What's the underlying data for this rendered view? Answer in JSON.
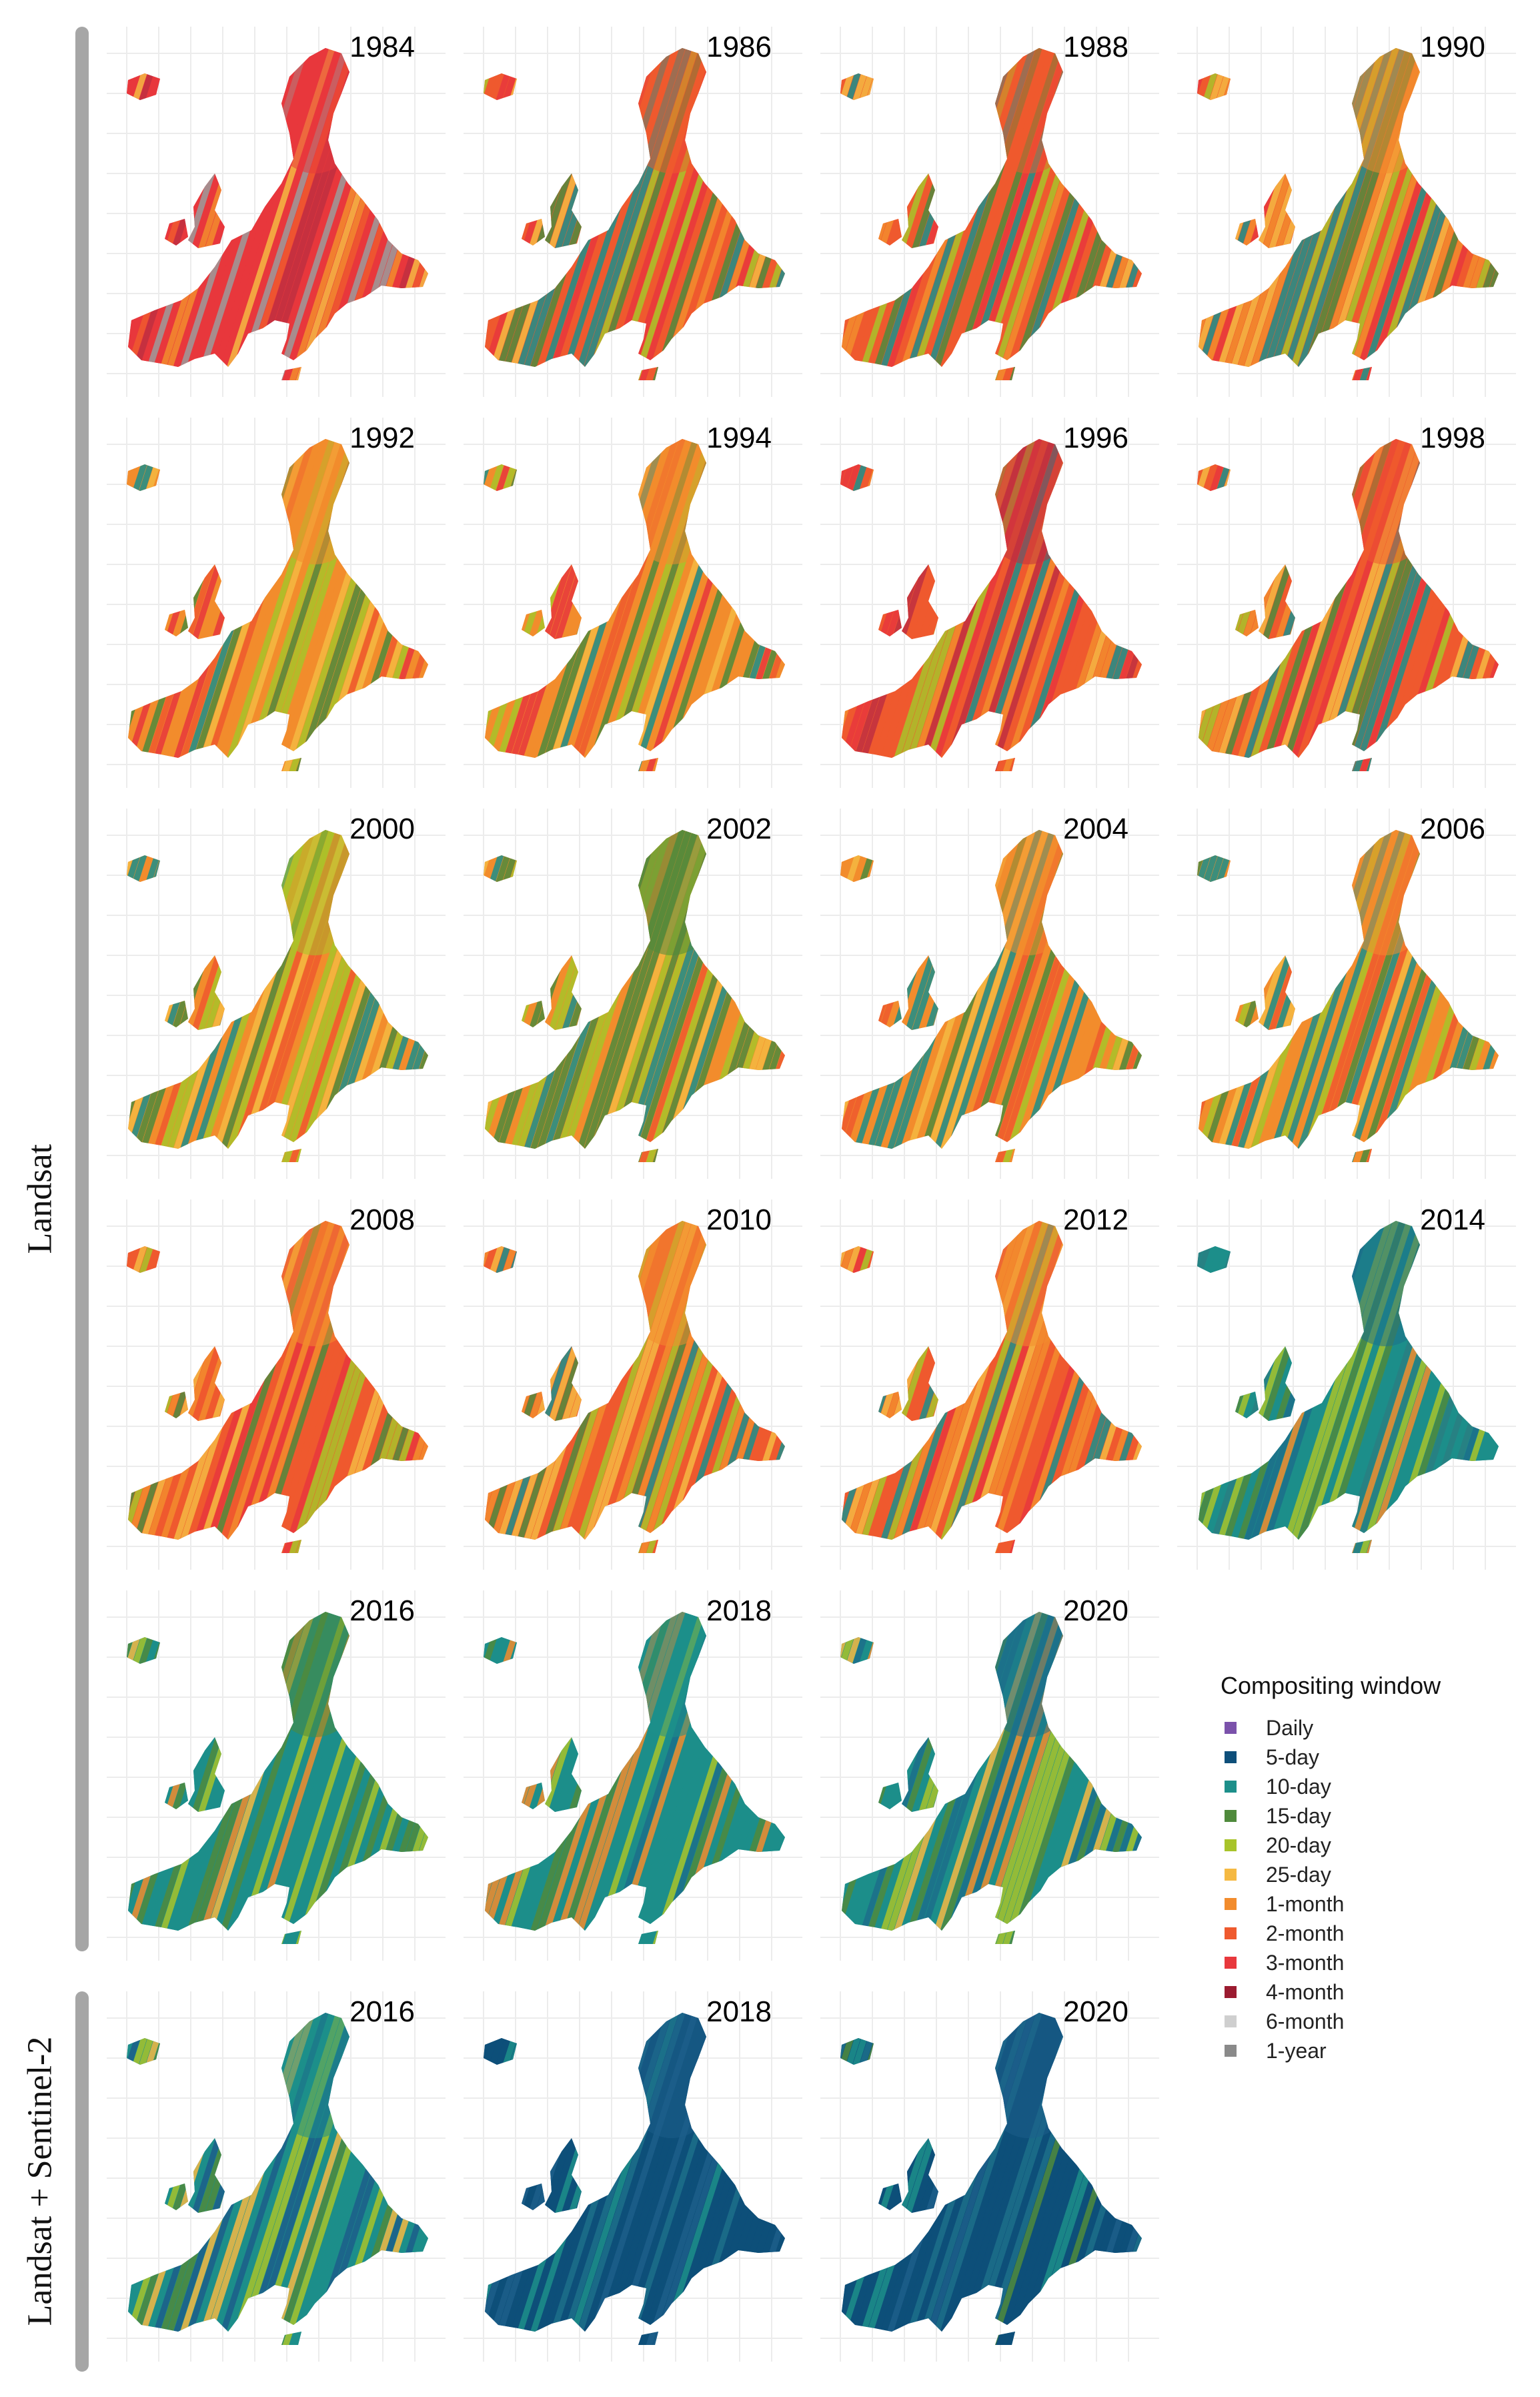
{
  "groups": [
    {
      "label": "Landsat"
    },
    {
      "label": "Landsat + Sentinel-2"
    }
  ],
  "panels": [
    {
      "year": "1984",
      "group": 0,
      "palette": [
        "#e8383d",
        "#ef5a2e",
        "#e8383d",
        "#f28c2d",
        "#c03040",
        "#9c9c9c",
        "#f5b942",
        "#e8383d"
      ]
    },
    {
      "year": "1986",
      "group": 0,
      "palette": [
        "#ef5a2e",
        "#f28c2d",
        "#e8383d",
        "#f5b942",
        "#a8c42a",
        "#4f8a3c",
        "#1d8f8a",
        "#ef5a2e"
      ]
    },
    {
      "year": "1988",
      "group": 0,
      "palette": [
        "#ef5a2e",
        "#f28c2d",
        "#e8383d",
        "#f5b942",
        "#a8c42a",
        "#4f8a3c",
        "#1d8f8a",
        "#ef5a2e"
      ]
    },
    {
      "year": "1990",
      "group": 0,
      "palette": [
        "#ef5a2e",
        "#f28c2d",
        "#f5b942",
        "#a8c42a",
        "#4f8a3c",
        "#1d8f8a",
        "#e8383d",
        "#f28c2d"
      ]
    },
    {
      "year": "1992",
      "group": 0,
      "palette": [
        "#f28c2d",
        "#ef5a2e",
        "#f5b942",
        "#a8c42a",
        "#4f8a3c",
        "#1d8f8a",
        "#e8383d",
        "#f28c2d"
      ]
    },
    {
      "year": "1994",
      "group": 0,
      "palette": [
        "#f28c2d",
        "#ef5a2e",
        "#f5b942",
        "#a8c42a",
        "#4f8a3c",
        "#1d8f8a",
        "#e8383d",
        "#f28c2d"
      ]
    },
    {
      "year": "1996",
      "group": 0,
      "palette": [
        "#ef5a2e",
        "#e8383d",
        "#f28c2d",
        "#f5b942",
        "#a8c42a",
        "#1d8f8a",
        "#ef5a2e",
        "#c03040"
      ]
    },
    {
      "year": "1998",
      "group": 0,
      "palette": [
        "#ef5a2e",
        "#e8383d",
        "#f28c2d",
        "#f5b942",
        "#a8c42a",
        "#1d8f8a",
        "#4f8a3c",
        "#ef5a2e"
      ]
    },
    {
      "year": "2000",
      "group": 0,
      "palette": [
        "#f28c2d",
        "#f5b942",
        "#a8c42a",
        "#4f8a3c",
        "#1d8f8a",
        "#1d8f8a",
        "#ef5a2e",
        "#a8c42a"
      ]
    },
    {
      "year": "2002",
      "group": 0,
      "palette": [
        "#f28c2d",
        "#f5b942",
        "#a8c42a",
        "#4f8a3c",
        "#1d8f8a",
        "#ef5a2e",
        "#a8c42a",
        "#4f8a3c"
      ]
    },
    {
      "year": "2004",
      "group": 0,
      "palette": [
        "#f28c2d",
        "#ef5a2e",
        "#f5b942",
        "#a8c42a",
        "#4f8a3c",
        "#1d8f8a",
        "#1d8f8a",
        "#f28c2d"
      ]
    },
    {
      "year": "2006",
      "group": 0,
      "palette": [
        "#f28c2d",
        "#ef5a2e",
        "#f5b942",
        "#a8c42a",
        "#1d8f8a",
        "#1d8f8a",
        "#4f8a3c",
        "#f28c2d"
      ]
    },
    {
      "year": "2008",
      "group": 0,
      "palette": [
        "#ef5a2e",
        "#f28c2d",
        "#e8383d",
        "#f5b942",
        "#a8c42a",
        "#ef5a2e",
        "#4f8a3c",
        "#f28c2d"
      ]
    },
    {
      "year": "2010",
      "group": 0,
      "palette": [
        "#ef5a2e",
        "#f28c2d",
        "#f5b942",
        "#a8c42a",
        "#4f8a3c",
        "#1d8f8a",
        "#ef5a2e",
        "#f28c2d"
      ]
    },
    {
      "year": "2012",
      "group": 0,
      "palette": [
        "#ef5a2e",
        "#f28c2d",
        "#e8383d",
        "#f5b942",
        "#a8c42a",
        "#1d8f8a",
        "#ef5a2e",
        "#f28c2d"
      ]
    },
    {
      "year": "2014",
      "group": 0,
      "palette": [
        "#1d8f8a",
        "#2a7f82",
        "#4f8a3c",
        "#1d8f8a",
        "#a8c42a",
        "#1d8f8a",
        "#f28c2d",
        "#1d6f8a"
      ]
    },
    {
      "year": "2016",
      "group": 0,
      "palette": [
        "#1d8f8a",
        "#4f8a3c",
        "#a8c42a",
        "#f5b942",
        "#1d8f8a",
        "#f28c2d",
        "#1d8f8a",
        "#4f8a3c"
      ]
    },
    {
      "year": "2018",
      "group": 0,
      "palette": [
        "#1d8f8a",
        "#1d8f8a",
        "#4f8a3c",
        "#1d6f8a",
        "#a8c42a",
        "#1d8f8a",
        "#f28c2d",
        "#1d8f8a"
      ]
    },
    {
      "year": "2020",
      "group": 0,
      "palette": [
        "#1d8f8a",
        "#4f8a3c",
        "#a8c42a",
        "#f5b942",
        "#1d8f8a",
        "#f28c2d",
        "#1d8f8a",
        "#1d6f8a"
      ]
    },
    {
      "year": "2016",
      "group": 1,
      "palette": [
        "#1d8f8a",
        "#1d5f8a",
        "#4f8a3c",
        "#a8c42a",
        "#1d8f8a",
        "#1d5f8a",
        "#f5b942",
        "#1d8f8a"
      ]
    },
    {
      "year": "2018",
      "group": 1,
      "palette": [
        "#0e4f7a",
        "#0e4f7a",
        "#1d6f8a",
        "#0e4f7a",
        "#1d8f8a",
        "#0e4f7a",
        "#0e4f7a",
        "#1d5f8a"
      ]
    },
    {
      "year": "2020",
      "group": 1,
      "palette": [
        "#0e4f7a",
        "#1d6f8a",
        "#0e4f7a",
        "#1d8f8a",
        "#0e4f7a",
        "#4f8a3c",
        "#0e4f7a",
        "#1d5f8a"
      ]
    }
  ],
  "legend": {
    "title": "Compositing window",
    "items": [
      {
        "label": "Daily",
        "color": "#7b52ab"
      },
      {
        "label": "5-day",
        "color": "#0e4f7a"
      },
      {
        "label": "10-day",
        "color": "#1d8f8a"
      },
      {
        "label": "15-day",
        "color": "#4f8a3c"
      },
      {
        "label": "20-day",
        "color": "#a8c42a"
      },
      {
        "label": "25-day",
        "color": "#f5b942"
      },
      {
        "label": "1-month",
        "color": "#f28c2d"
      },
      {
        "label": "2-month",
        "color": "#ef5a2e"
      },
      {
        "label": "3-month",
        "color": "#e8383d"
      },
      {
        "label": "4-month",
        "color": "#9b1b30"
      },
      {
        "label": "6-month",
        "color": "#cfcfcf"
      },
      {
        "label": "1-year",
        "color": "#8a8a8a"
      }
    ]
  }
}
